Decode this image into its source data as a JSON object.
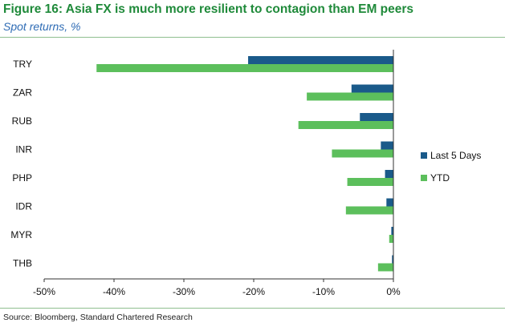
{
  "title": "Figure 16: Asia FX is much more resilient to contagion than EM peers",
  "subtitle": "Spot returns, %",
  "source": "Source: Bloomberg, Standard Chartered Research",
  "colors": {
    "last_5_days": "#1a5a8a",
    "ytd": "#5cbf5c",
    "title": "#1f8a3a",
    "subtitle": "#2f6cb5"
  },
  "chart_data": {
    "type": "bar",
    "orientation": "horizontal",
    "categories": [
      "TRY",
      "ZAR",
      "RUB",
      "INR",
      "PHP",
      "IDR",
      "MYR",
      "THB"
    ],
    "series": [
      {
        "name": "Last 5 Days",
        "values": [
          -20.8,
          -6.0,
          -4.8,
          -1.8,
          -1.2,
          -1.0,
          -0.3,
          -0.2
        ]
      },
      {
        "name": "YTD",
        "values": [
          -42.5,
          -12.4,
          -13.6,
          -8.8,
          -6.6,
          -6.8,
          -0.6,
          -2.2
        ]
      }
    ],
    "xlim": [
      -50,
      0
    ],
    "xticks": [
      -50,
      -40,
      -30,
      -20,
      -10,
      0
    ],
    "xtick_labels": [
      "-50%",
      "-40%",
      "-30%",
      "-20%",
      "-10%",
      "0%"
    ],
    "xlabel": "",
    "ylabel": "",
    "legend_position": "right",
    "grid": false
  }
}
